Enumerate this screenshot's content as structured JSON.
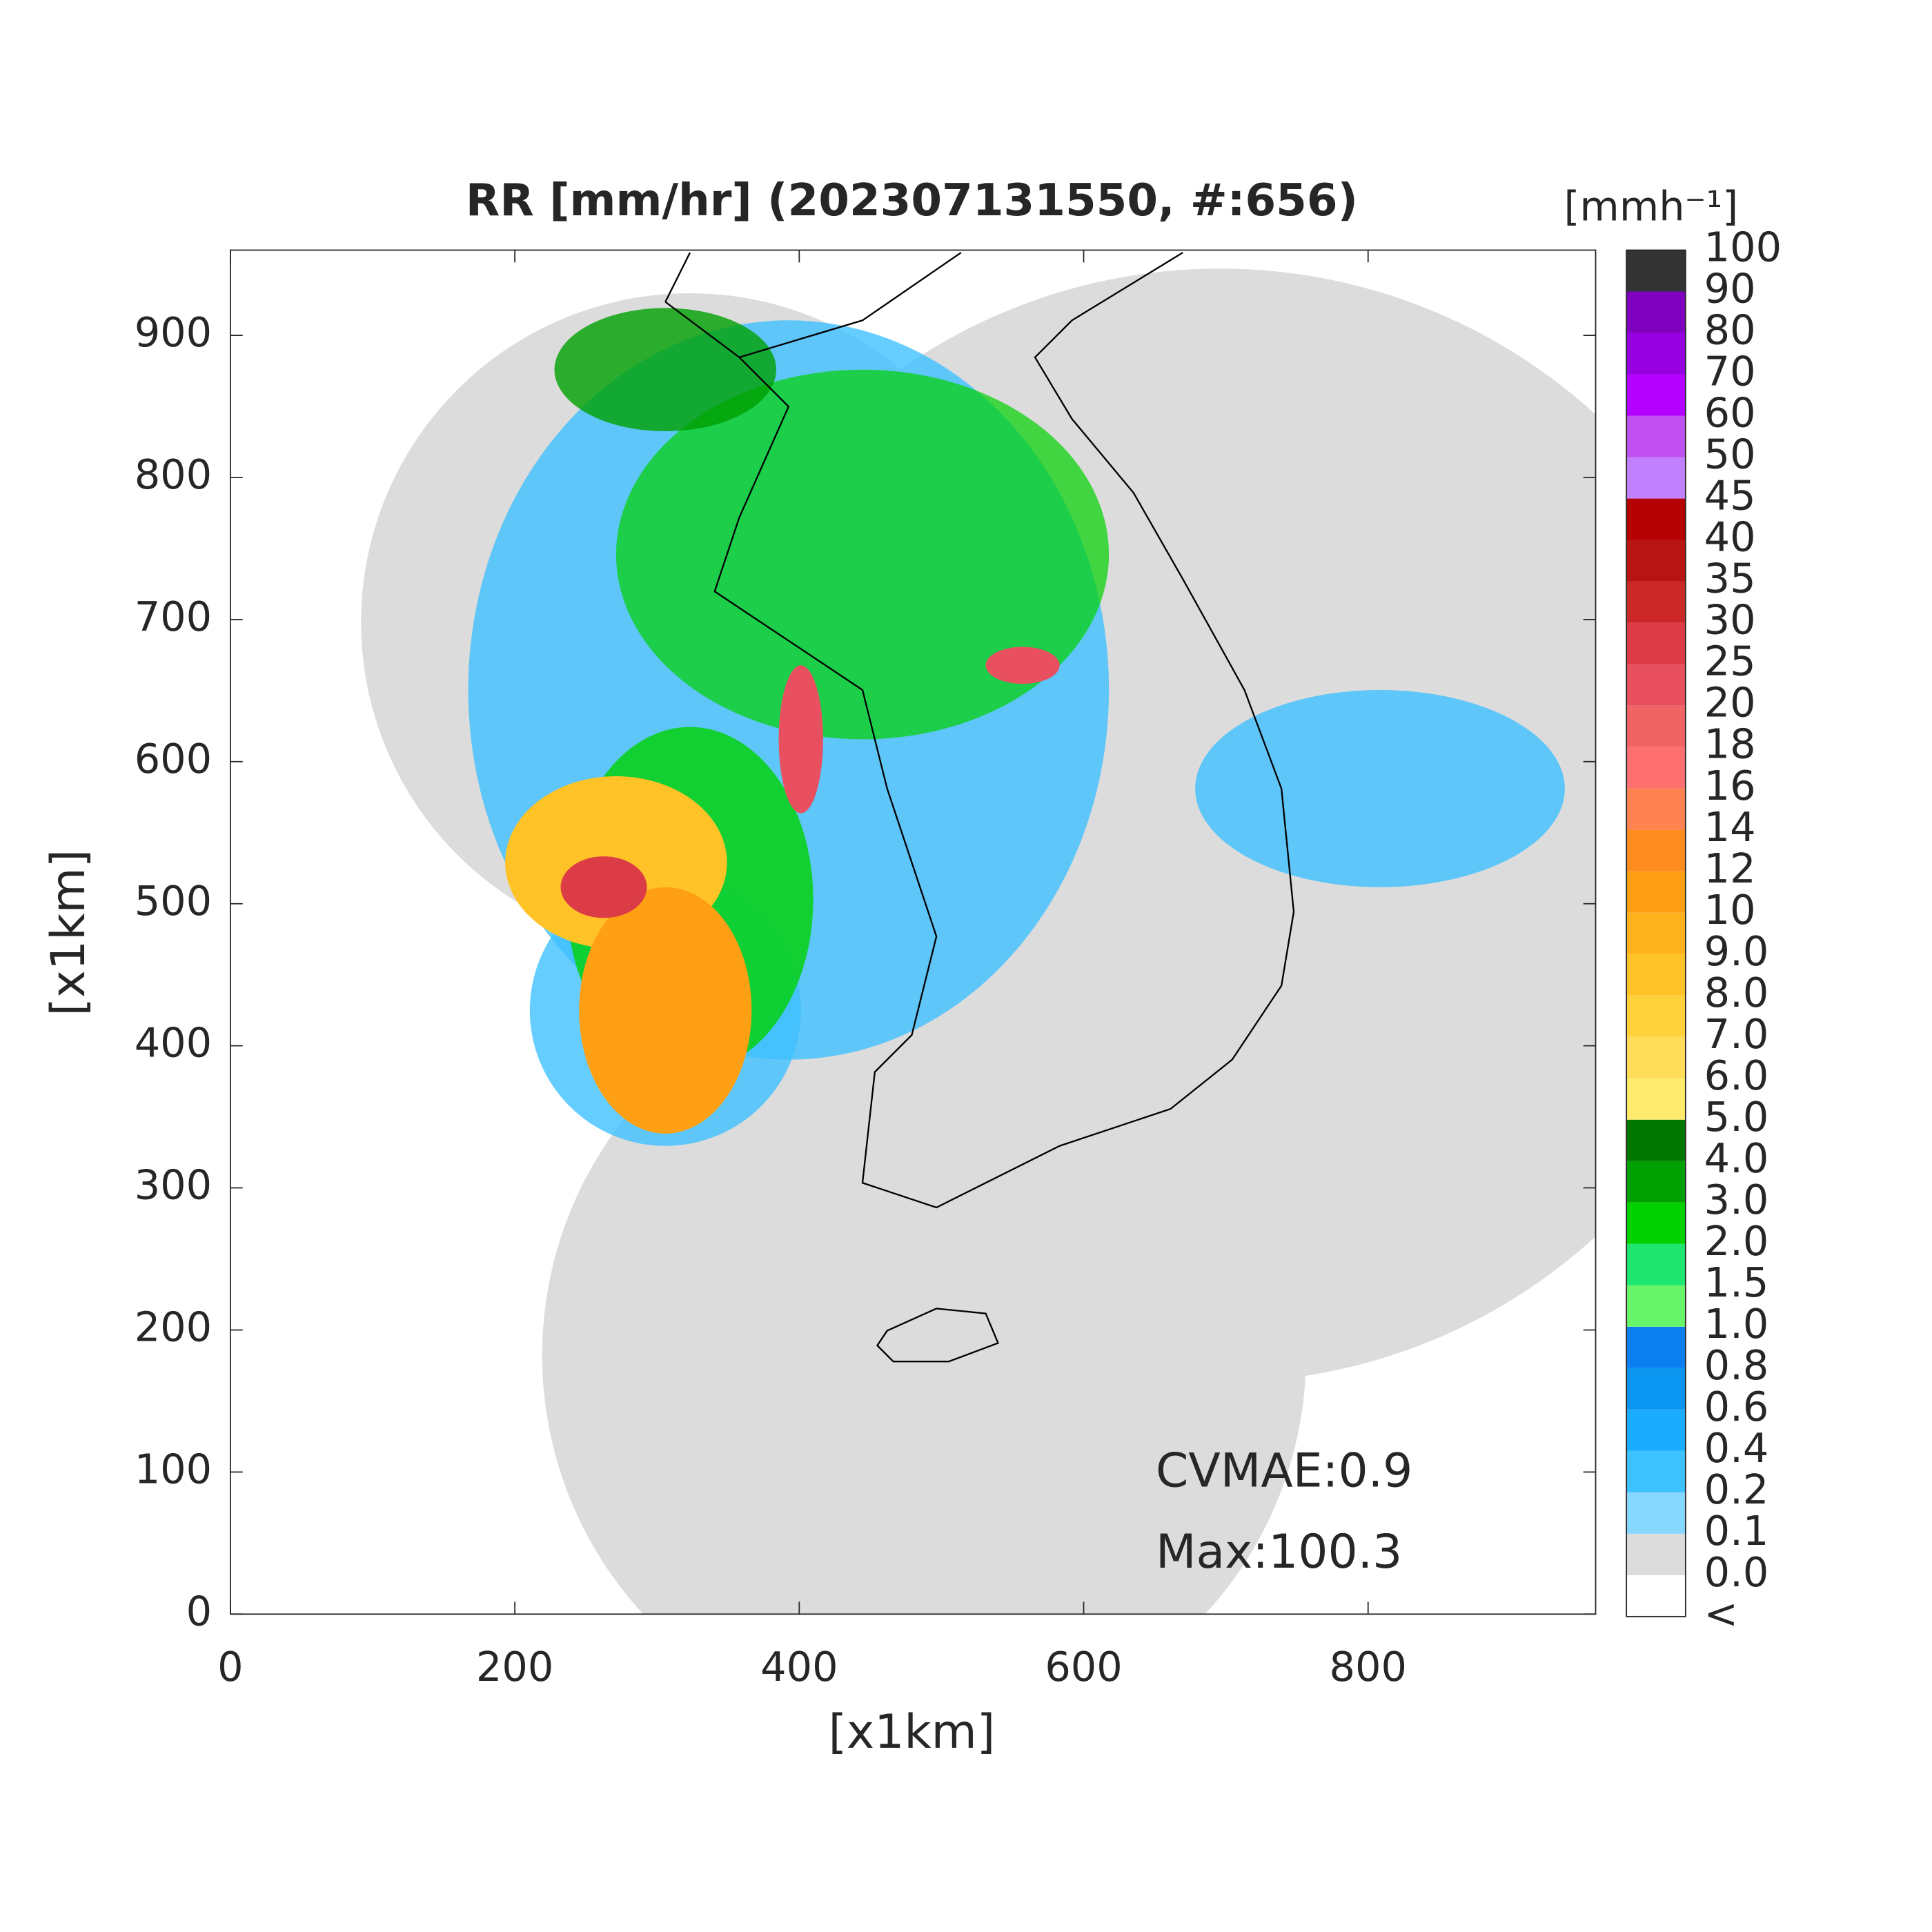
{
  "chart_data": {
    "type": "heatmap",
    "title": "RR [mm/hr] (202307131550, #:656)",
    "xlabel": "[x1km]",
    "ylabel": "[x1km]",
    "xlim": [
      0,
      960
    ],
    "ylim": [
      0,
      960
    ],
    "xticks": [
      0,
      200,
      400,
      600,
      800
    ],
    "yticks": [
      0,
      100,
      200,
      300,
      400,
      500,
      600,
      700,
      800,
      900
    ],
    "annotations": [
      "CVMAE:0.9",
      "Max:100.3"
    ],
    "colorbar": {
      "label": "[mmh⁻¹]",
      "labels": [
        "<",
        "0.0",
        "0.1",
        "0.2",
        "0.4",
        "0.6",
        "0.8",
        "1.0",
        "1.5",
        "2.0",
        "3.0",
        "4.0",
        "5.0",
        "6.0",
        "7.0",
        "8.0",
        "9.0",
        "10",
        "12",
        "14",
        "16",
        "18",
        "20",
        "25",
        "30",
        "35",
        "40",
        "45",
        "50",
        "60",
        "70",
        "80",
        "90",
        "100"
      ],
      "colors": [
        "#ffffff",
        "#dcdcdc",
        "#87d8ff",
        "#3ec1ff",
        "#1aadff",
        "#0a96f0",
        "#0a7ff0",
        "#69f569",
        "#1ee66e",
        "#00d200",
        "#00a000",
        "#007800",
        "#ffeb6e",
        "#ffdc5a",
        "#ffd23c",
        "#ffc328",
        "#ffb41e",
        "#ffa014",
        "#ff8c1e",
        "#ff8250",
        "#ff7070",
        "#f06464",
        "#e85060",
        "#dc3c46",
        "#cd2828",
        "#b91414",
        "#b40000",
        "#c080ff",
        "#c050f0",
        "#b400ff",
        "#9600e0",
        "#8000c0",
        "#333333"
      ]
    }
  }
}
